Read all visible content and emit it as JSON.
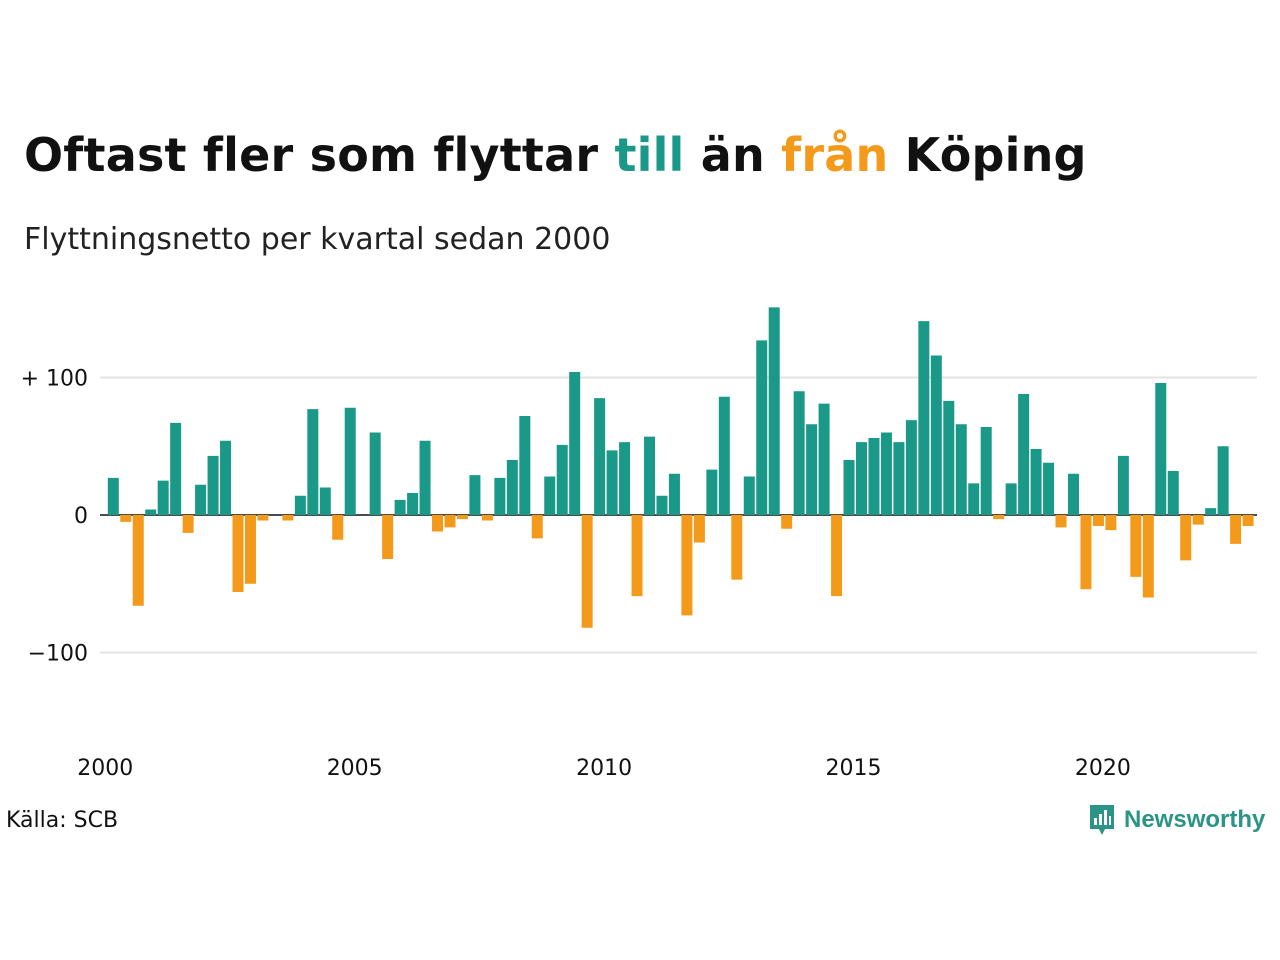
{
  "title": {
    "part1": "Oftast fler som flyttar ",
    "highlight_till": "till",
    "part2": " än ",
    "highlight_fran": "från",
    "part3": " Köping"
  },
  "subtitle": "Flyttningsnetto per kvartal sedan 2000",
  "source": "Källa: SCB",
  "brand": {
    "name": "Newsworthy",
    "logo_icon": "bar-chart-speech-bubble-icon"
  },
  "colors": {
    "positive": "#1a9989",
    "negative": "#f49a1a",
    "grid": "#e3e3e3",
    "axis": "#111111"
  },
  "chart_data": {
    "type": "bar",
    "x_start": "2000 Q1",
    "x_tick_labels": [
      "2000",
      "2005",
      "2010",
      "2015",
      "2020"
    ],
    "y_tick_labels": [
      "+ 100",
      "0",
      "−100"
    ],
    "y_ticks": [
      100,
      0,
      -100
    ],
    "ylim": [
      -170,
      160
    ],
    "grid": true,
    "values": [
      27,
      -5,
      -66,
      4,
      25,
      67,
      -13,
      22,
      43,
      54,
      -56,
      -50,
      -4,
      0,
      -4,
      14,
      77,
      20,
      -18,
      78,
      0,
      60,
      -32,
      11,
      16,
      54,
      -12,
      -9,
      -3,
      29,
      -4,
      27,
      40,
      72,
      -17,
      28,
      51,
      104,
      -82,
      85,
      47,
      53,
      -59,
      57,
      14,
      30,
      -73,
      -20,
      33,
      86,
      -47,
      28,
      127,
      151,
      -10,
      90,
      66,
      81,
      -59,
      40,
      53,
      56,
      60,
      53,
      69,
      141,
      116,
      83,
      66,
      23,
      64,
      -3,
      23,
      88,
      48,
      38,
      -9,
      30,
      -54,
      -8,
      -11,
      43,
      -45,
      -60,
      96,
      32,
      -33,
      -7,
      5,
      50,
      -21,
      -8
    ]
  }
}
